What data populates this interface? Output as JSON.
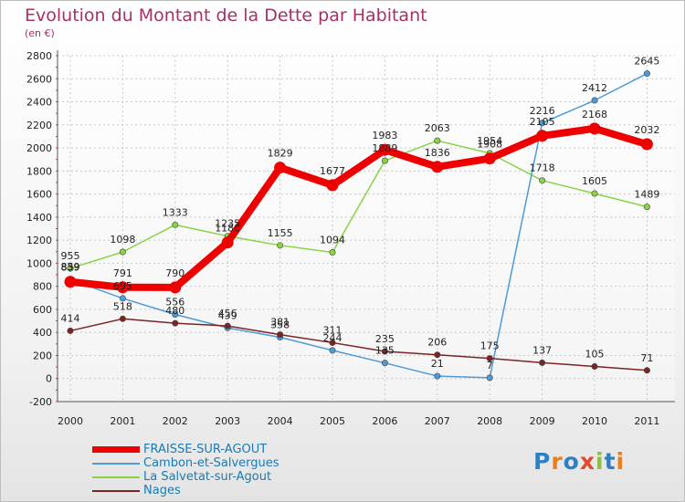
{
  "title": "Evolution du Montant de la Dette par Habitant",
  "subtitle": "(en €)",
  "logo": "Proxiti",
  "logo_colors": [
    "#2f7fc1",
    "#ee7d1b",
    "#2f7fc1",
    "#e34a2e",
    "#8cbf3f",
    "#2f7fc1",
    "#ee7d1b"
  ],
  "chart_data": {
    "type": "line",
    "title": "Evolution du Montant de la Dette par Habitant",
    "ylabel": "(en €)",
    "x": [
      "2000",
      "2001",
      "2002",
      "2003",
      "2004",
      "2005",
      "2006",
      "2007",
      "2008",
      "2009",
      "2010",
      "2011"
    ],
    "ylim": [
      -200,
      2800
    ],
    "yticks": [
      -200,
      0,
      200,
      400,
      600,
      800,
      1000,
      1200,
      1400,
      1600,
      1800,
      2000,
      2200,
      2400,
      2600,
      2800
    ],
    "grid": true,
    "legend_position": "bottom-left",
    "series": [
      {
        "name": "FRAISSE-SUR-AGOUT",
        "color": "#ee0000",
        "values": [
          839,
          791,
          790,
          1180,
          1829,
          1677,
          1983,
          1836,
          1908,
          2105,
          2168,
          2032
        ]
      },
      {
        "name": "Cambon-et-Salvergues",
        "color": "#4e9ad6",
        "values": [
          859,
          695,
          556,
          439,
          358,
          244,
          135,
          21,
          7,
          2216,
          2412,
          2645
        ]
      },
      {
        "name": "La Salvetat-sur-Agout",
        "color": "#8ad348",
        "values": [
          955,
          1098,
          1333,
          1235,
          1155,
          1094,
          1889,
          2063,
          1954,
          1718,
          1605,
          1489
        ]
      },
      {
        "name": "Nages",
        "color": "#7a2424",
        "values": [
          414,
          518,
          480,
          456,
          381,
          311,
          235,
          206,
          175,
          137,
          105,
          71
        ]
      }
    ]
  }
}
